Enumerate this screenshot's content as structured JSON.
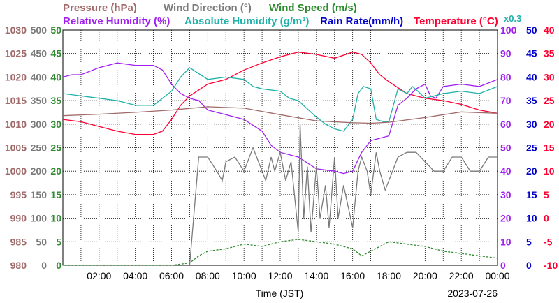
{
  "chart_data": {
    "type": "line",
    "xlabel": "Time (JST)",
    "date": "2023-07-26",
    "x_ticks": [
      "02:00",
      "04:00",
      "06:00",
      "08:00",
      "10:00",
      "12:00",
      "14:00",
      "16:00",
      "18:00",
      "20:00",
      "22:00",
      "00:00"
    ],
    "x_range_hours": [
      0,
      24
    ],
    "grid": true,
    "legend": {
      "row1": [
        {
          "text": "Pressure (hPa)",
          "color": "#a06a6a"
        },
        {
          "text": "Wind Direction (°)",
          "color": "#7a7a7a"
        },
        {
          "text": "Wind Speed (m/s)",
          "color": "#2e8b2e"
        }
      ],
      "row2": [
        {
          "text": "Relative Humidity (%)",
          "color": "#a020f0"
        },
        {
          "text": "Absolute Humidity (g/m³)",
          "color": "#20b2aa"
        },
        {
          "text": "Rain Rate(mm/h)",
          "color": "#0000cd"
        },
        {
          "text": "Temperature (°C)",
          "color": "#ff0033"
        }
      ],
      "note": {
        "text": "x0.3",
        "color": "#20b2aa"
      }
    },
    "axes": [
      {
        "name": "Pressure (hPa)",
        "side": "left",
        "color": "#a06a6a",
        "ticks": [
          "1030",
          "1025",
          "1020",
          "1015",
          "1010",
          "1005",
          "1000",
          "995",
          "990",
          "985",
          "980"
        ],
        "range": [
          980,
          1030
        ]
      },
      {
        "name": "Wind Direction (°)",
        "side": "left",
        "color": "#7a7a7a",
        "ticks": [
          "500",
          "450",
          "400",
          "350",
          "300",
          "250",
          "200",
          "150",
          "100",
          "50",
          "0"
        ],
        "range": [
          0,
          500
        ]
      },
      {
        "name": "Wind Speed (m/s)",
        "side": "left",
        "color": "#2e8b2e",
        "ticks": [
          "50",
          "45",
          "40",
          "35",
          "30",
          "25",
          "20",
          "15",
          "10",
          "5",
          "0"
        ],
        "range": [
          0,
          50
        ]
      },
      {
        "name": "Relative Humidity (%)",
        "side": "right",
        "color": "#a020f0",
        "ticks": [
          "100",
          "90",
          "80",
          "70",
          "60",
          "50",
          "40",
          "30",
          "20",
          "10",
          "0"
        ],
        "range": [
          0,
          100
        ]
      },
      {
        "name": "Rain Rate(mm/h)",
        "side": "right",
        "color": "#0000cd",
        "ticks": [
          "50",
          "45",
          "40",
          "35",
          "30",
          "25",
          "20",
          "15",
          "10",
          "5",
          "0"
        ],
        "range": [
          0,
          50
        ]
      },
      {
        "name": "Temperature (°C)",
        "side": "right",
        "color": "#ff0033",
        "ticks": [
          "40",
          "35",
          "30",
          "25",
          "20",
          "15",
          "10",
          "5",
          "0",
          "-5",
          "-10"
        ],
        "range": [
          -10,
          40
        ]
      }
    ],
    "series": [
      {
        "name": "Temperature (°C)",
        "color": "#ff0033",
        "axis": "Temperature (°C)",
        "x": [
          0,
          1,
          2,
          3,
          4,
          5,
          5.5,
          6,
          6.5,
          7,
          8,
          9,
          10,
          11,
          12,
          13,
          14,
          15,
          16,
          16.5,
          17,
          17.5,
          18,
          19,
          20,
          21,
          22,
          23,
          24
        ],
        "values": [
          21,
          20.5,
          19.5,
          18.5,
          17.8,
          17.8,
          18.5,
          21,
          24,
          26,
          28.5,
          29.5,
          31.5,
          33,
          34.3,
          35.3,
          34.8,
          34,
          35.3,
          34.8,
          33,
          30.5,
          29,
          26.5,
          25.5,
          25,
          24.2,
          23,
          22.3
        ]
      },
      {
        "name": "Relative Humidity (%)",
        "color": "#a020f0",
        "axis": "Relative Humidity (%)",
        "x": [
          0,
          0.5,
          1,
          2,
          3,
          4,
          5,
          5.5,
          6,
          6.5,
          7,
          7.5,
          8,
          9,
          10,
          11,
          11.5,
          12,
          13,
          14,
          15,
          15.5,
          16,
          16.5,
          17,
          17.5,
          18,
          18.5,
          19,
          19.5,
          20,
          20.3,
          20.6,
          21,
          22,
          23,
          24
        ],
        "values": [
          80,
          81,
          81,
          84,
          86,
          85,
          85,
          83,
          77,
          73,
          71,
          70,
          66,
          64,
          62,
          57,
          51,
          48,
          46,
          41,
          40,
          39,
          40,
          48,
          53,
          54,
          55,
          68,
          71,
          75,
          77,
          72,
          71,
          76,
          77,
          76,
          79
        ]
      },
      {
        "name": "Absolute Humidity (g/m³)",
        "color": "#20b2aa",
        "axis": "Relative Humidity (%)",
        "x": [
          0,
          1,
          2,
          3,
          4,
          5,
          5.5,
          6,
          6.5,
          7,
          8,
          9,
          10,
          10.5,
          11,
          12,
          12.5,
          13,
          14,
          14.5,
          15,
          15.5,
          16,
          16.3,
          16.6,
          17,
          17.3,
          17.7,
          18,
          18.5,
          19,
          19.3,
          19.6,
          20,
          20.5,
          21,
          22,
          23,
          24
        ],
        "values": [
          73,
          72,
          71,
          70,
          68,
          68,
          71,
          74,
          80,
          84,
          79,
          80,
          79,
          76,
          75,
          74,
          71,
          70,
          63,
          60,
          58,
          57,
          62,
          73,
          76,
          75,
          62,
          61,
          61,
          75,
          73,
          76,
          74,
          71,
          72,
          73,
          74,
          73,
          76
        ]
      },
      {
        "name": "Pressure (hPa)",
        "color": "#a06a6a",
        "axis": "Pressure (hPa)",
        "x": [
          0,
          2,
          4,
          6,
          8,
          10,
          12,
          14,
          16,
          17,
          18,
          20,
          22,
          24
        ],
        "values": [
          1011.8,
          1012.1,
          1012.5,
          1013,
          1013.7,
          1013.4,
          1012,
          1010.7,
          1010.3,
          1010.2,
          1010.4,
          1011.4,
          1012.6,
          1012.3
        ]
      },
      {
        "name": "Wind Direction (°)",
        "color": "#7a7a7a",
        "axis": "Wind Direction (°)",
        "x": [
          7,
          7.5,
          8,
          8.5,
          8.8,
          9,
          9.5,
          10,
          10.5,
          11,
          11.2,
          11.5,
          11.7,
          12,
          12.3,
          12.6,
          13,
          13.1,
          13.3,
          13.5,
          13.7,
          14,
          14.2,
          14.5,
          14.7,
          15,
          15.2,
          15.5,
          16,
          16.3,
          16.5,
          16.8,
          17,
          17.3,
          17.5,
          17.8,
          18,
          18.5,
          19,
          19.5,
          20,
          20.5,
          21,
          21.5,
          22,
          22.5,
          23,
          23.5,
          24
        ],
        "values": [
          0,
          230,
          230,
          200,
          180,
          220,
          230,
          200,
          250,
          200,
          180,
          230,
          200,
          240,
          180,
          220,
          70,
          300,
          100,
          210,
          70,
          210,
          100,
          170,
          80,
          230,
          100,
          170,
          80,
          200,
          230,
          200,
          150,
          240,
          200,
          160,
          180,
          230,
          240,
          240,
          220,
          200,
          200,
          230,
          230,
          200,
          200,
          230,
          230
        ]
      },
      {
        "name": "Wind Speed (m/s)",
        "color": "#2e8b2e",
        "axis": "Wind Speed (m/s)",
        "x": [
          0,
          1,
          2,
          3,
          4,
          5,
          6,
          7,
          7.5,
          8,
          9,
          10,
          11,
          12,
          13,
          14,
          15,
          16,
          16.5,
          17,
          18,
          19,
          20,
          21,
          22,
          23,
          24
        ],
        "values": [
          0,
          0,
          0,
          0,
          0,
          0,
          0,
          0.5,
          2,
          3,
          3.5,
          4.5,
          4,
          5,
          5.5,
          5,
          4.5,
          3.5,
          2,
          3,
          5,
          4.5,
          4,
          3,
          2.5,
          2,
          1.5
        ]
      }
    ]
  }
}
